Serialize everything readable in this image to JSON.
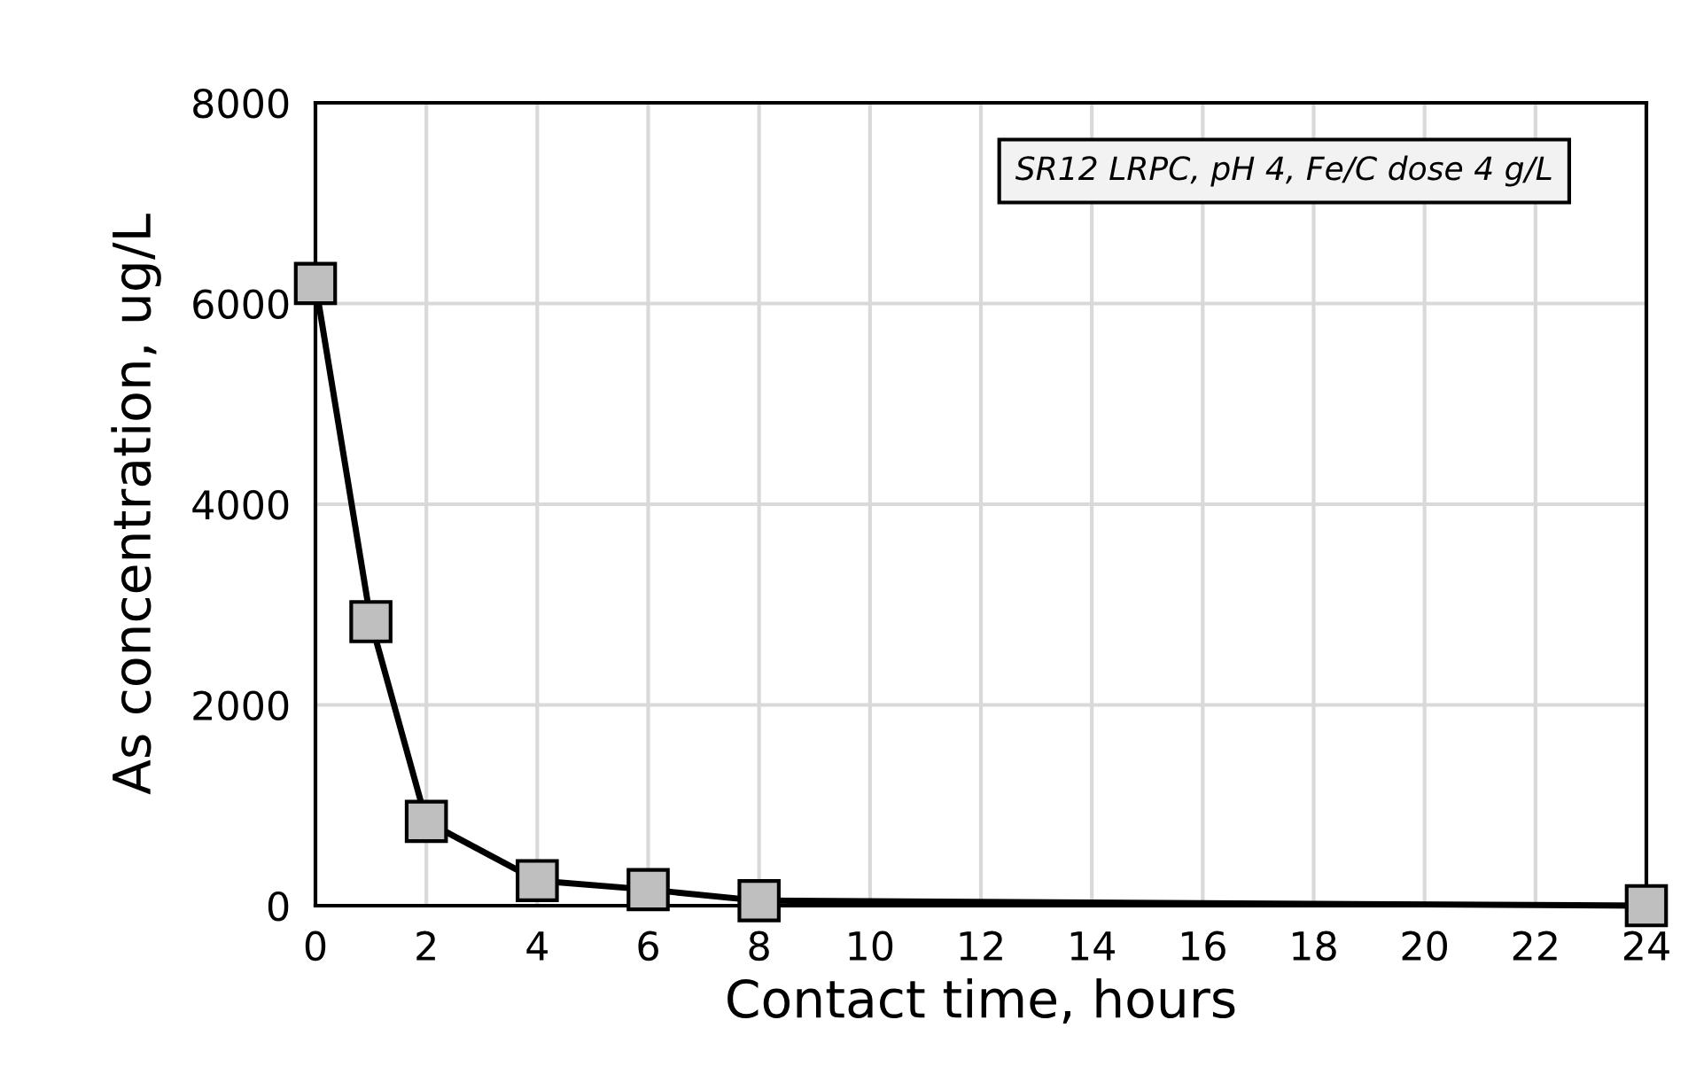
{
  "chart_data": {
    "type": "line",
    "xlabel": "Contact time, hours",
    "ylabel": "As concentration, ug/L",
    "annotations": [
      "SR12 LRPC, pH 4, Fe/C dose 4 g/L"
    ],
    "x": [
      0,
      1,
      2,
      4,
      6,
      8,
      24
    ],
    "series": [
      {
        "color": "#000000",
        "values": [
          6200,
          2830,
          840,
          250,
          160,
          50,
          0
        ]
      }
    ],
    "xlim": [
      0,
      24
    ],
    "xticks": [
      0,
      2,
      4,
      6,
      8,
      10,
      12,
      14,
      16,
      18,
      20,
      22,
      24
    ],
    "ylim": [
      0,
      8000
    ],
    "yticks": [
      0,
      2000,
      4000,
      6000,
      8000
    ],
    "grid": true,
    "legend": false,
    "marker": "square",
    "line_style": "solid"
  }
}
